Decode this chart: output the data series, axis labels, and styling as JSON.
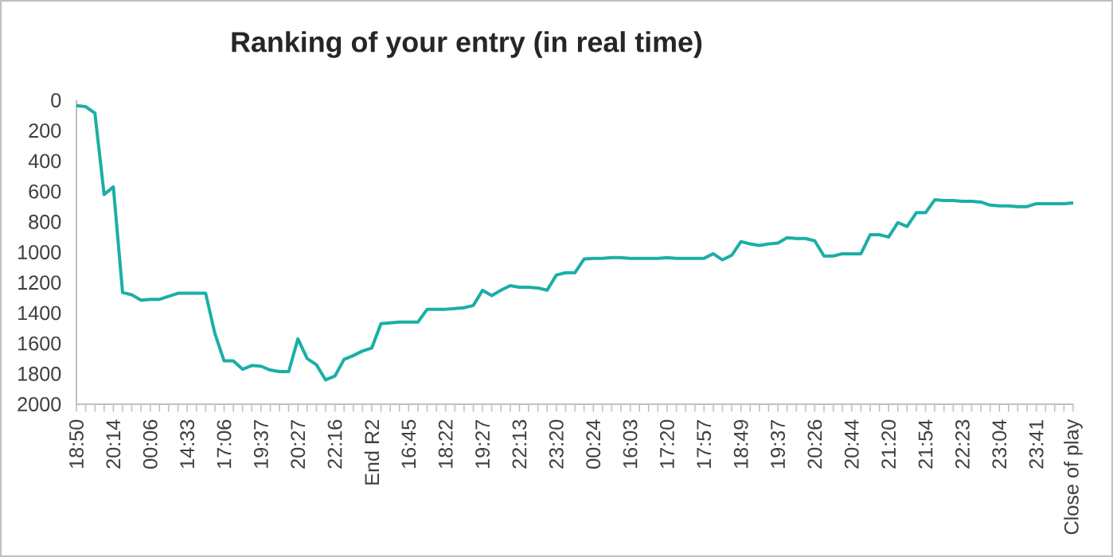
{
  "chart_data": {
    "type": "line",
    "title": "Ranking of your entry (in real time)",
    "categories": [
      "18:50",
      null,
      null,
      null,
      "20:14",
      null,
      null,
      null,
      "00:06",
      null,
      null,
      null,
      "14:33",
      null,
      null,
      null,
      "17:06",
      null,
      null,
      null,
      "19:37",
      null,
      null,
      null,
      "20:27",
      null,
      null,
      null,
      "22:16",
      null,
      null,
      null,
      "End R2",
      null,
      null,
      null,
      "16:45",
      null,
      null,
      null,
      "18:22",
      null,
      null,
      null,
      "19:27",
      null,
      null,
      null,
      "22:13",
      null,
      null,
      null,
      "23:20",
      null,
      null,
      null,
      "00:24",
      null,
      null,
      null,
      "16:03",
      null,
      null,
      null,
      "17:20",
      null,
      null,
      null,
      "17:57",
      null,
      null,
      null,
      "18:49",
      null,
      null,
      null,
      "19:37",
      null,
      null,
      null,
      "20:26",
      null,
      null,
      null,
      "20:44",
      null,
      null,
      null,
      "21:20",
      null,
      null,
      null,
      "21:54",
      null,
      null,
      null,
      "22:23",
      null,
      null,
      null,
      "23:04",
      null,
      null,
      null,
      "23:41",
      null,
      null,
      null,
      "Close of play"
    ],
    "values": [
      35,
      42,
      85,
      620,
      570,
      1265,
      1280,
      1315,
      1310,
      1310,
      1290,
      1270,
      1270,
      1270,
      1270,
      1535,
      1715,
      1715,
      1770,
      1745,
      1750,
      1775,
      1785,
      1785,
      1570,
      1700,
      1740,
      1840,
      1815,
      1705,
      1680,
      1650,
      1630,
      1470,
      1465,
      1460,
      1460,
      1460,
      1375,
      1375,
      1375,
      1370,
      1365,
      1350,
      1250,
      1285,
      1250,
      1220,
      1230,
      1230,
      1235,
      1250,
      1150,
      1135,
      1135,
      1045,
      1040,
      1040,
      1035,
      1035,
      1040,
      1040,
      1040,
      1040,
      1035,
      1040,
      1040,
      1040,
      1040,
      1010,
      1050,
      1020,
      930,
      945,
      955,
      945,
      940,
      905,
      910,
      910,
      925,
      1025,
      1025,
      1010,
      1010,
      1010,
      885,
      885,
      900,
      805,
      830,
      740,
      740,
      655,
      660,
      660,
      665,
      665,
      670,
      690,
      695,
      695,
      700,
      700,
      680,
      680,
      680,
      680,
      675
    ],
    "color": "#1aafa6",
    "ylim": [
      2000,
      0
    ],
    "yticks": [
      0,
      200,
      400,
      600,
      800,
      1000,
      1200,
      1400,
      1600,
      1800,
      2000
    ],
    "grid": false,
    "marker": "none",
    "line_style": "solid"
  }
}
